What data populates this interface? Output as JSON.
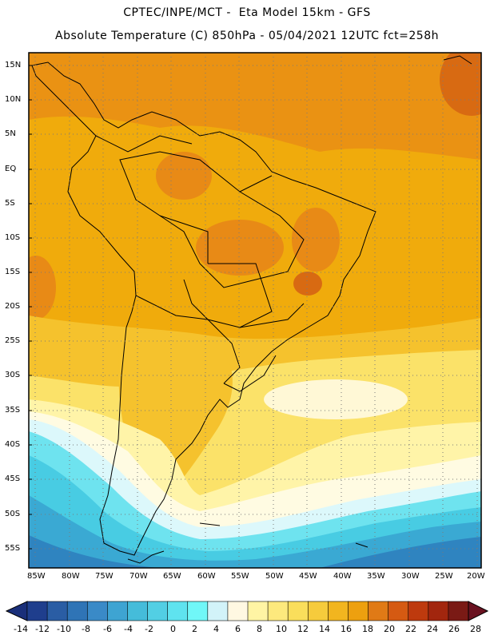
{
  "header": {
    "line1": "CPTEC/INPE/MCT -  Eta Model 15km - GFS",
    "line2": "Absolute Temperature (C) 850hPa - 05/04/2021 12UTC fct=258h"
  },
  "map": {
    "lat_labels": [
      "15N",
      "10N",
      "5N",
      "EQ",
      "5S",
      "10S",
      "15S",
      "20S",
      "25S",
      "30S",
      "35S",
      "40S",
      "45S",
      "50S",
      "55S"
    ],
    "lon_labels": [
      "85W",
      "80W",
      "75W",
      "70W",
      "65W",
      "60W",
      "55W",
      "50W",
      "45W",
      "40W",
      "35W",
      "30W",
      "25W",
      "20W"
    ],
    "grid": "dotted graticule every 5 degrees",
    "colors": {
      "tropical_base": "#f0ab0c",
      "warm": "#e88a16",
      "hot": "#d86a12",
      "mid_warm": "#f5c22d",
      "yellow": "#fbe269",
      "pale_yellow": "#fff4a8",
      "cream": "#fffbe2",
      "light_cyan": "#dcf8fb",
      "cyan": "#6ee3ef",
      "aqua": "#48cce3",
      "teal": "#3aa9d3",
      "blue": "#2f84c0",
      "land_outline": "#000000"
    }
  },
  "colorbar": {
    "labels": [
      "-14",
      "-12",
      "-10",
      "-8",
      "-6",
      "-4",
      "-2",
      "0",
      "2",
      "4",
      "6",
      "8",
      "10",
      "12",
      "14",
      "16",
      "18",
      "20",
      "22",
      "24",
      "26",
      "28"
    ],
    "colors": [
      "#1f3e8d",
      "#2a5da4",
      "#2f74b6",
      "#3a8ac7",
      "#3ea4d2",
      "#45bcda",
      "#52cfe4",
      "#5fe3ef",
      "#70f7f8",
      "#d2f3f9",
      "#fff8e2",
      "#fff4a4",
      "#fde97d",
      "#fade5b",
      "#f6cb3c",
      "#f2b51f",
      "#eda00f",
      "#e07a16",
      "#d55a12",
      "#be3a0e",
      "#a2260e",
      "#7a1a15"
    ]
  }
}
